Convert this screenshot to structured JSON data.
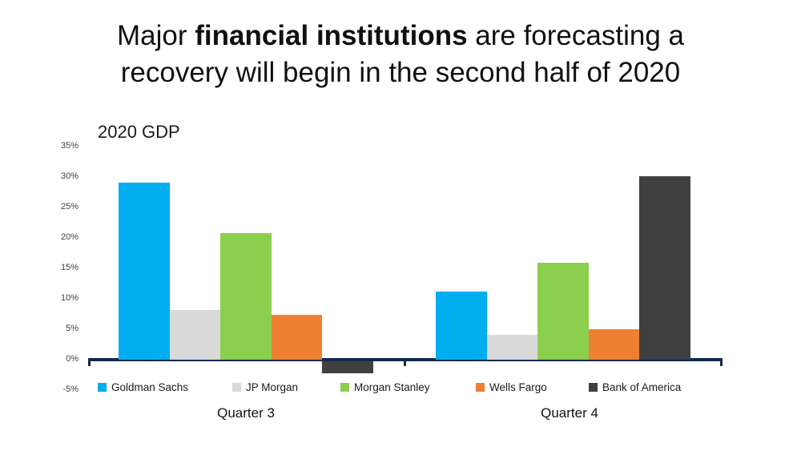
{
  "title": {
    "prefix": "Major ",
    "bold": "financial institutions",
    "suffix": " are forecasting a",
    "line2": "recovery will begin in the second half of 2020"
  },
  "chart_data": {
    "type": "bar",
    "title": "2020 GDP",
    "categories": [
      "Quarter 3",
      "Quarter 4"
    ],
    "series": [
      {
        "name": "Goldman Sachs",
        "color": "#00aeef",
        "values": [
          29,
          11
        ]
      },
      {
        "name": "JP Morgan",
        "color": "#d9d9d9",
        "values": [
          8,
          4
        ]
      },
      {
        "name": "Morgan Stanley",
        "color": "#8cce4d",
        "values": [
          20.6,
          15.8
        ]
      },
      {
        "name": "Wells Fargo",
        "color": "#ee8033",
        "values": [
          7.3,
          4.9
        ]
      },
      {
        "name": "Bank of America",
        "color": "#404040",
        "values": [
          -2,
          30
        ]
      }
    ],
    "y_ticks": [
      "35%",
      "30%",
      "25%",
      "20%",
      "15%",
      "10%",
      "5%",
      "0%",
      "-5%"
    ],
    "ylim": [
      -5,
      35
    ],
    "grid": false,
    "legend_position": "bottom",
    "axis_color": "#16294c"
  }
}
